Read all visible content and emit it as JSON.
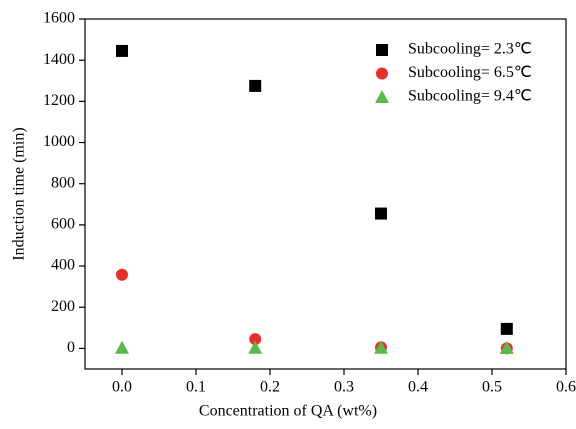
{
  "chart_data": {
    "type": "scatter",
    "xlabel": "Concentration of QA (wt%)",
    "ylabel": "Induction time (min)",
    "x": [
      0,
      0.18,
      0.35,
      0.52
    ],
    "series": [
      {
        "name": "Subcooling= 2.3℃",
        "color": "#000000",
        "marker": "square",
        "values": [
          1445,
          1275,
          655,
          95
        ]
      },
      {
        "name": "Subcooling= 6.5℃",
        "color": "#e8302a",
        "marker": "circle",
        "values": [
          358,
          45,
          5,
          0
        ]
      },
      {
        "name": "Subcooling= 9.4℃",
        "color": "#5cb84a",
        "marker": "triangle",
        "values": [
          3,
          3,
          3,
          2
        ]
      }
    ],
    "xlim": [
      -0.05,
      0.6
    ],
    "xticks": [
      {
        "value": 0,
        "label": "0.0"
      },
      0.1,
      0.2,
      0.3,
      0.4,
      0.5,
      0.6
    ],
    "ylim": [
      -100,
      1600
    ],
    "yticks": [
      0,
      200,
      400,
      600,
      800,
      1000,
      1200,
      1400,
      1600
    ],
    "legend": "upper right"
  }
}
